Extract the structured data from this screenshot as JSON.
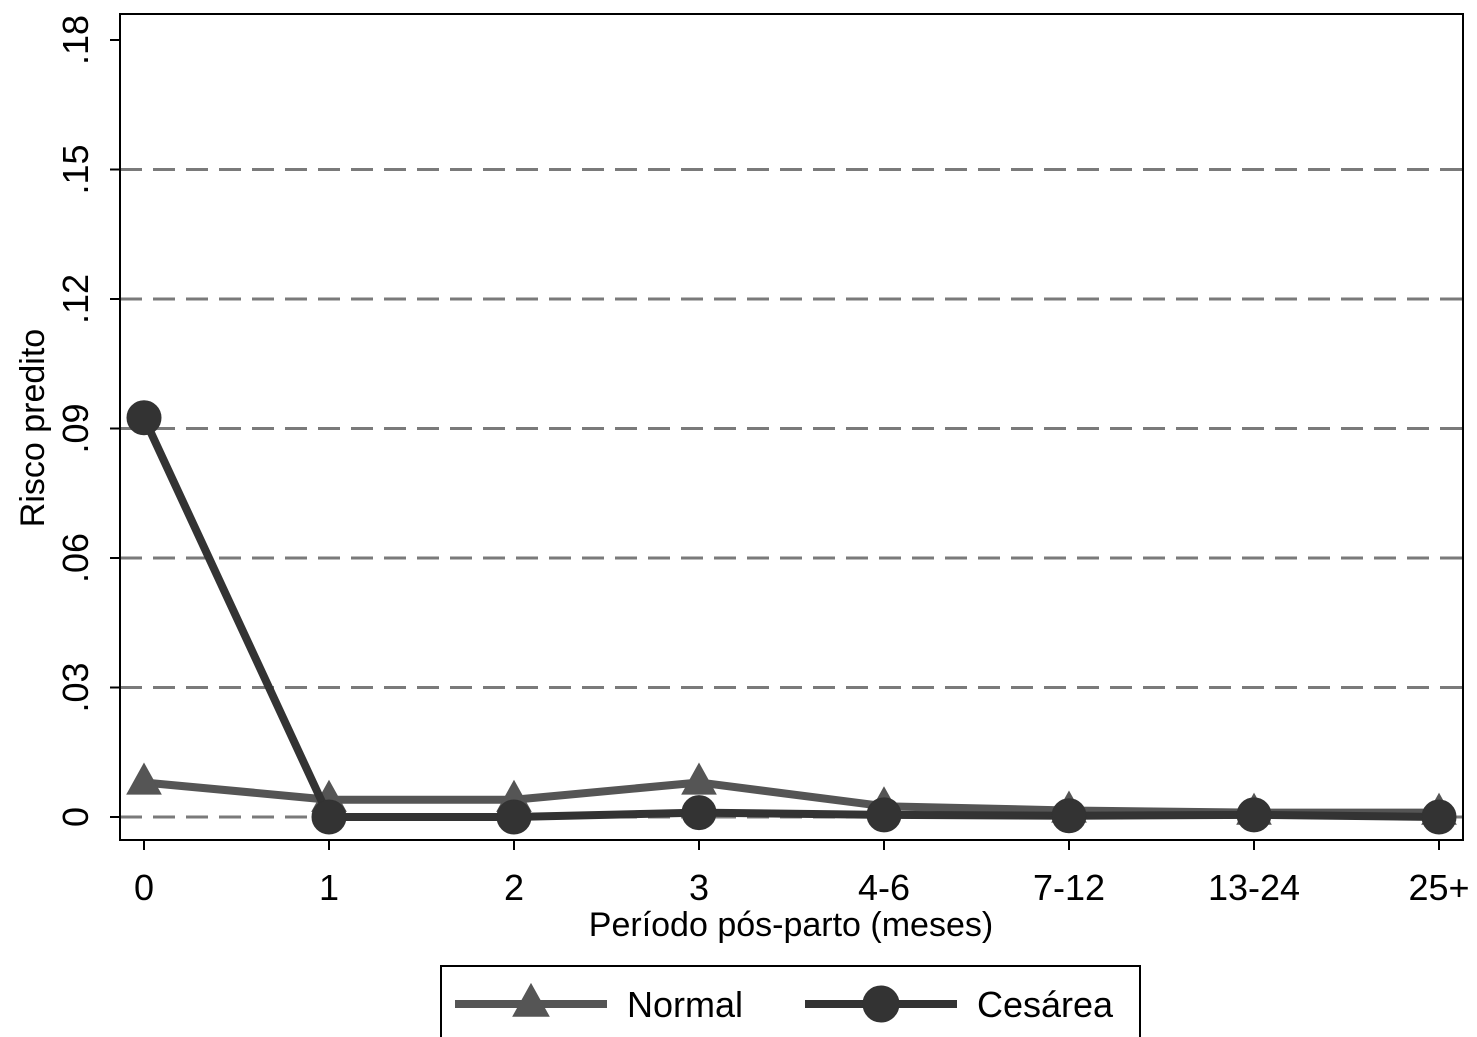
{
  "chart_data": {
    "type": "line",
    "categories": [
      "0",
      "1",
      "2",
      "3",
      "4-6",
      "7-12",
      "13-24",
      "25+"
    ],
    "series": [
      {
        "name": "Normal",
        "marker": "triangle",
        "color": "#555555",
        "values": [
          0.008,
          0.004,
          0.004,
          0.008,
          0.0025,
          0.0015,
          0.001,
          0.001
        ]
      },
      {
        "name": "Cesárea",
        "marker": "circle",
        "color": "#333333",
        "values": [
          0.0925,
          0.0,
          0.0,
          0.001,
          0.0005,
          0.0003,
          0.0005,
          0.0
        ]
      }
    ],
    "xlabel": "Período pós-parto (meses)",
    "ylabel": "Risco predito",
    "ylim": [
      0,
      0.18
    ],
    "yticks": [
      0,
      0.03,
      0.06,
      0.09,
      0.12,
      0.15,
      0.18
    ],
    "ytick_labels": [
      "0",
      ".03",
      ".06",
      ".09",
      ".12",
      ".15",
      ".18"
    ],
    "grid": "dashed horizontal",
    "legend_position": "bottom"
  }
}
